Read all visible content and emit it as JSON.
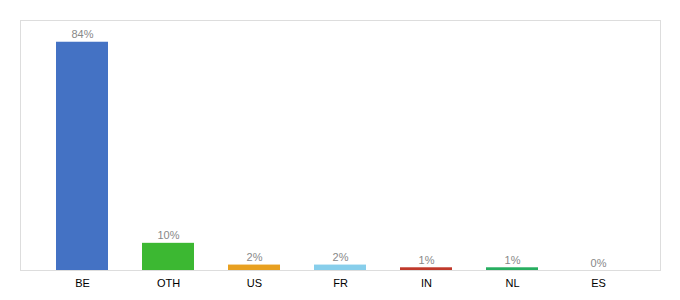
{
  "chart_data": {
    "type": "bar",
    "categories": [
      "BE",
      "OTH",
      "US",
      "FR",
      "IN",
      "NL",
      "ES"
    ],
    "values": [
      84,
      10,
      2,
      2,
      1,
      1,
      0
    ],
    "value_labels": [
      "84%",
      "10%",
      "2%",
      "2%",
      "1%",
      "1%",
      "0%"
    ],
    "colors": [
      "#4472C4",
      "#3CB832",
      "#E8A020",
      "#87CEEB",
      "#C0392B",
      "#27AE60",
      "#AAAAAA"
    ],
    "ylim": [
      0,
      92
    ],
    "data_labels": true,
    "tick_labels": "x"
  }
}
